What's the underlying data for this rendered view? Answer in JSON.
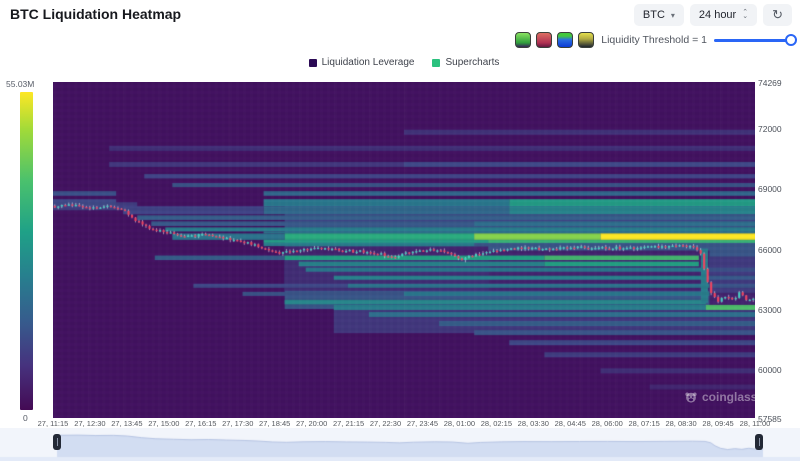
{
  "header": {
    "title": "BTC Liquidation Heatmap"
  },
  "controls": {
    "symbol": "BTC",
    "interval": "24 hour",
    "caret_icon": "▾",
    "spin_up": "⌃",
    "spin_down": "⌄",
    "refresh_icon": "↻"
  },
  "toolbar": {
    "threshold_label": "Liquidity Threshold = 1",
    "palette_names": [
      "green",
      "red",
      "blue-green",
      "yellow-dark"
    ],
    "slider_color": "#2a66f6"
  },
  "legend": {
    "items": [
      {
        "label": "Liquidation Leverage",
        "color": "#2b0a55"
      },
      {
        "label": "Supercharts",
        "color": "#2bc17e"
      }
    ]
  },
  "colorbar": {
    "max_label": "55.03M",
    "min_label": "0"
  },
  "watermark": {
    "text": "coinglass"
  },
  "chart_data": {
    "type": "heatmap",
    "title": "BTC Liquidation Heatmap",
    "colormap": "viridis",
    "max_liquidation_label": "55.03M",
    "price_range": [
      57585,
      74269
    ],
    "y_ticks": [
      74269,
      72000,
      69000,
      66000,
      63000,
      60000,
      57585
    ],
    "x_ticks": [
      "27, 11:15",
      "27, 12:30",
      "27, 13:45",
      "27, 15:00",
      "27, 16:15",
      "27, 17:30",
      "27, 18:45",
      "27, 20:00",
      "27, 21:15",
      "27, 22:30",
      "27, 23:45",
      "28, 01:00",
      "28, 02:15",
      "28, 03:30",
      "28, 04:45",
      "28, 06:00",
      "28, 07:15",
      "28, 08:30",
      "28, 09:45",
      "28, 11:00"
    ],
    "candle_colors": {
      "up": "#45d6c2",
      "down": "#f0435f",
      "wick": "rgba(238,238,248,0.85)"
    },
    "price_line": {
      "keyframes": [
        [
          0,
          68100
        ],
        [
          0.03,
          68160
        ],
        [
          0.055,
          68020
        ],
        [
          0.08,
          68080
        ],
        [
          0.1,
          67850
        ],
        [
          0.12,
          67300
        ],
        [
          0.14,
          66950
        ],
        [
          0.165,
          66780
        ],
        [
          0.19,
          66620
        ],
        [
          0.215,
          66700
        ],
        [
          0.24,
          66520
        ],
        [
          0.265,
          66380
        ],
        [
          0.285,
          66180
        ],
        [
          0.305,
          65880
        ],
        [
          0.325,
          65760
        ],
        [
          0.35,
          65940
        ],
        [
          0.38,
          66010
        ],
        [
          0.41,
          65900
        ],
        [
          0.44,
          65840
        ],
        [
          0.465,
          65740
        ],
        [
          0.485,
          65580
        ],
        [
          0.505,
          65800
        ],
        [
          0.535,
          65930
        ],
        [
          0.56,
          65860
        ],
        [
          0.582,
          65430
        ],
        [
          0.6,
          65720
        ],
        [
          0.63,
          65910
        ],
        [
          0.66,
          66010
        ],
        [
          0.7,
          65990
        ],
        [
          0.74,
          66030
        ],
        [
          0.78,
          66060
        ],
        [
          0.82,
          66010
        ],
        [
          0.86,
          66080
        ],
        [
          0.9,
          66140
        ],
        [
          0.918,
          66060
        ],
        [
          0.926,
          65600
        ],
        [
          0.932,
          64600
        ],
        [
          0.94,
          63750
        ],
        [
          0.95,
          63350
        ],
        [
          0.96,
          63650
        ],
        [
          0.97,
          63420
        ],
        [
          0.98,
          63780
        ],
        [
          0.99,
          63480
        ],
        [
          1,
          63560
        ]
      ]
    },
    "washes": [
      {
        "p": [
          68300,
          67200
        ],
        "seg": [
          [
            0.33,
            1,
            0.2
          ]
        ]
      },
      {
        "p": [
          67200,
          63000
        ],
        "seg": [
          [
            0.33,
            1,
            0.27
          ]
        ]
      },
      {
        "p": [
          63000,
          61800
        ],
        "seg": [
          [
            0.4,
            1,
            0.16
          ]
        ]
      },
      {
        "p": [
          68300,
          67900
        ],
        "seg": [
          [
            0,
            0.12,
            0.18
          ]
        ]
      }
    ],
    "patches": [
      {
        "p": [
          66100,
          65400
        ],
        "seg": [
          [
            0.33,
            0.62,
            0.1
          ]
        ]
      },
      {
        "p": [
          65400,
          63900
        ],
        "seg": [
          [
            0.33,
            0.62,
            0.13
          ]
        ]
      },
      {
        "p": [
          65900,
          63900
        ],
        "seg": [
          [
            0.62,
            0.935,
            0.1
          ]
        ]
      },
      {
        "p": [
          65600,
          63800
        ],
        "seg": [
          [
            0.935,
            1,
            0.17
          ]
        ]
      },
      {
        "p": [
          63800,
          63050
        ],
        "seg": [
          [
            0.935,
            1,
            0.1
          ]
        ]
      }
    ],
    "bands": [
      {
        "p": [
          71900,
          71650
        ],
        "seg": [
          [
            0.5,
            1,
            0.15
          ]
        ]
      },
      {
        "p": [
          71100,
          70850
        ],
        "seg": [
          [
            0.08,
            1,
            0.14
          ]
        ]
      },
      {
        "p": [
          70300,
          70050
        ],
        "seg": [
          [
            0.08,
            0.5,
            0.16
          ],
          [
            0.5,
            1,
            0.22
          ]
        ]
      },
      {
        "p": [
          69700,
          69480
        ],
        "seg": [
          [
            0.13,
            1,
            0.2
          ]
        ]
      },
      {
        "p": [
          69250,
          69050
        ],
        "seg": [
          [
            0.17,
            1,
            0.26
          ]
        ]
      },
      {
        "p": [
          68850,
          68620
        ],
        "seg": [
          [
            0,
            0.09,
            0.25
          ],
          [
            0.3,
            1,
            0.33
          ]
        ]
      },
      {
        "p": [
          68450,
          68100
        ],
        "seg": [
          [
            0,
            0.09,
            0.22
          ],
          [
            0.3,
            0.65,
            0.4
          ],
          [
            0.65,
            1,
            0.55
          ]
        ]
      },
      {
        "p": [
          68100,
          67700
        ],
        "seg": [
          [
            0.1,
            0.3,
            0.2
          ],
          [
            0.3,
            0.65,
            0.34
          ],
          [
            0.65,
            1,
            0.45
          ]
        ]
      },
      {
        "p": [
          67650,
          67420
        ],
        "seg": [
          [
            0.12,
            1,
            0.3
          ]
        ]
      },
      {
        "p": [
          67350,
          67120
        ],
        "seg": [
          [
            0.14,
            0.6,
            0.28
          ],
          [
            0.6,
            1,
            0.36
          ]
        ]
      },
      {
        "p": [
          67050,
          66850
        ],
        "seg": [
          [
            0.16,
            1,
            0.42
          ]
        ]
      },
      {
        "p": [
          66850,
          66750
        ],
        "seg": [
          [
            0.3,
            1,
            0.38
          ]
        ]
      },
      {
        "p": [
          66750,
          66430
        ],
        "seg": [
          [
            0.17,
            0.33,
            0.38
          ],
          [
            0.33,
            0.6,
            0.62
          ],
          [
            0.6,
            0.78,
            0.82
          ],
          [
            0.78,
            1,
            1.0
          ]
        ]
      },
      {
        "p": [
          66430,
          66280
        ],
        "seg": [
          [
            0.3,
            0.62,
            0.55
          ],
          [
            0.62,
            1,
            0.65
          ]
        ]
      },
      {
        "p": [
          66280,
          66120
        ],
        "seg": [
          [
            0.3,
            0.6,
            0.42
          ]
        ]
      },
      {
        "p": [
          65650,
          65430
        ],
        "seg": [
          [
            0.145,
            0.33,
            0.3
          ],
          [
            0.33,
            0.7,
            0.58
          ],
          [
            0.7,
            0.92,
            0.68
          ]
        ]
      },
      {
        "p": [
          65350,
          65120
        ],
        "seg": [
          [
            0.35,
            0.7,
            0.45
          ],
          [
            0.7,
            0.92,
            0.58
          ]
        ]
      },
      {
        "p": [
          65050,
          64850
        ],
        "seg": [
          [
            0.36,
            0.935,
            0.4
          ],
          [
            0.935,
            1,
            0.25
          ]
        ]
      },
      {
        "p": [
          64650,
          64450
        ],
        "seg": [
          [
            0.4,
            0.935,
            0.44
          ],
          [
            0.935,
            1,
            0.28
          ]
        ]
      },
      {
        "p": [
          64250,
          64050
        ],
        "seg": [
          [
            0.2,
            0.42,
            0.22
          ],
          [
            0.42,
            0.935,
            0.38
          ],
          [
            0.935,
            1,
            0.26
          ]
        ]
      },
      {
        "p": [
          63850,
          63650
        ],
        "seg": [
          [
            0.27,
            0.5,
            0.26
          ],
          [
            0.5,
            0.935,
            0.4
          ]
        ]
      },
      {
        "p": [
          63450,
          63230
        ],
        "seg": [
          [
            0.33,
            0.93,
            0.46
          ]
        ]
      },
      {
        "p": [
          63200,
          62950
        ],
        "seg": [
          [
            0.4,
            0.93,
            0.42
          ],
          [
            0.93,
            1,
            0.7
          ]
        ]
      },
      {
        "p": [
          62850,
          62600
        ],
        "seg": [
          [
            0.45,
            1,
            0.36
          ]
        ]
      },
      {
        "p": [
          62400,
          62150
        ],
        "seg": [
          [
            0.55,
            1,
            0.3
          ]
        ]
      },
      {
        "p": [
          61950,
          61700
        ],
        "seg": [
          [
            0.6,
            1,
            0.26
          ]
        ]
      },
      {
        "p": [
          61450,
          61200
        ],
        "seg": [
          [
            0.65,
            1,
            0.22
          ]
        ]
      },
      {
        "p": [
          60850,
          60600
        ],
        "seg": [
          [
            0.7,
            1,
            0.18
          ]
        ]
      },
      {
        "p": [
          60050,
          59800
        ],
        "seg": [
          [
            0.78,
            1,
            0.14
          ]
        ]
      },
      {
        "p": [
          59250,
          59000
        ],
        "seg": [
          [
            0.85,
            1,
            0.11
          ]
        ]
      },
      {
        "p": [
          66000,
          63300
        ],
        "seg": [
          [
            0.923,
            0.933,
            0.42
          ]
        ]
      }
    ]
  }
}
